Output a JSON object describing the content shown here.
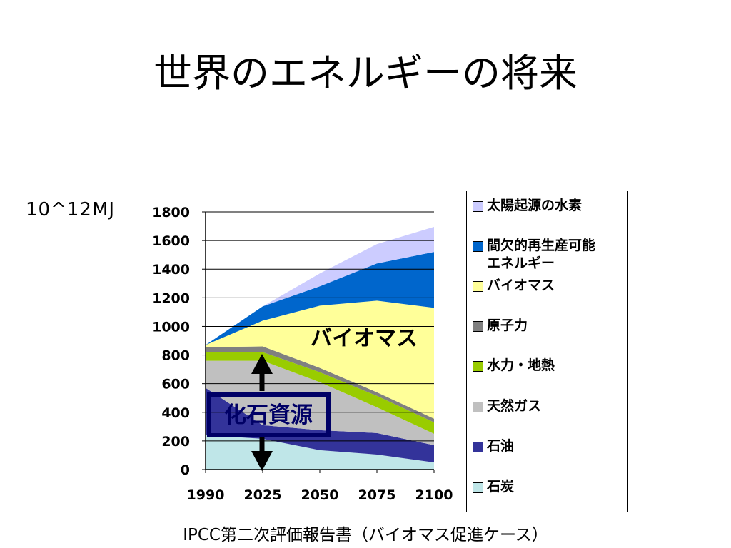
{
  "title": "世界のエネルギーの将来",
  "unit_label": "10^12MJ",
  "source": "IPCC第二次評価報告書（バイオマス促進ケース）",
  "annotations": {
    "biomass": "バイオマス",
    "fossil": "化石資源"
  },
  "colors": {
    "coal": "#bfe6e8",
    "oil": "#33339a",
    "gas": "#c0c0c0",
    "hydro": "#99cc00",
    "nuclear": "#808080",
    "biomass": "#ffff99",
    "intermittent": "#0066cc",
    "solar_hydrogen": "#ccccff",
    "fossil_box": "#000066",
    "arrow": "#000000"
  },
  "chart_data": {
    "type": "area",
    "stacked": true,
    "x": [
      "1990",
      "2025",
      "2050",
      "2075",
      "2100"
    ],
    "ylim": [
      0,
      1800
    ],
    "yticks": [
      0,
      200,
      400,
      600,
      800,
      1000,
      1200,
      1400,
      1600,
      1800
    ],
    "ylabel": "10^12MJ",
    "xlabel": "",
    "grid": "horizontal",
    "legend_position": "right",
    "series": [
      {
        "name": "石炭",
        "key": "coal",
        "values": [
          240,
          215,
          135,
          105,
          50
        ]
      },
      {
        "name": "石油",
        "key": "oil",
        "values": [
          330,
          95,
          140,
          150,
          120
        ]
      },
      {
        "name": "天然ガス",
        "key": "gas",
        "values": [
          190,
          450,
          335,
          180,
          80
        ]
      },
      {
        "name": "水力・地熱",
        "key": "hydro",
        "values": [
          60,
          60,
          70,
          80,
          80
        ]
      },
      {
        "name": "原子力",
        "key": "nuclear",
        "values": [
          35,
          40,
          30,
          25,
          25
        ]
      },
      {
        "name": "バイオマス",
        "key": "biomass",
        "values": [
          15,
          180,
          435,
          640,
          775
        ]
      },
      {
        "name": "間欠的再生産可能\nエネルギー",
        "key": "intermittent",
        "values": [
          0,
          100,
          135,
          260,
          390
        ]
      },
      {
        "name": "太陽起源の水素",
        "key": "solar_hydrogen",
        "values": [
          0,
          0,
          90,
          135,
          175
        ]
      }
    ]
  }
}
